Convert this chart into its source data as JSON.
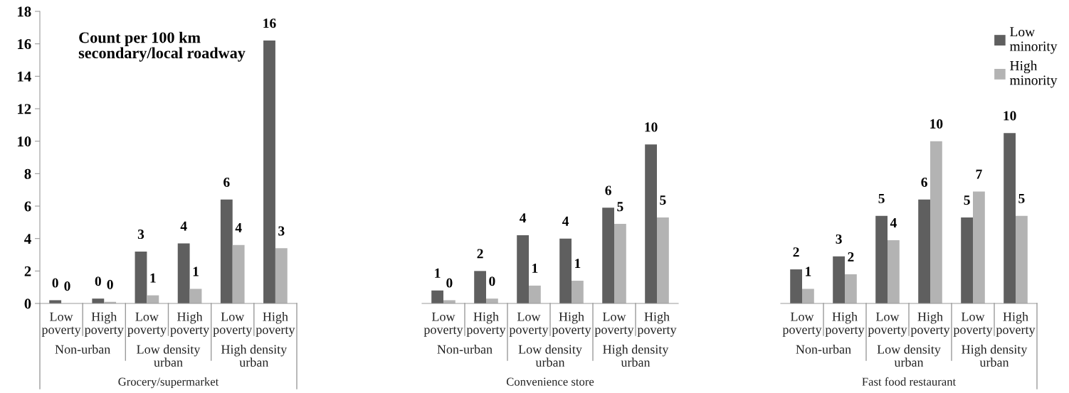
{
  "chart_data": [
    {
      "type": "bar",
      "ylabel": "Count per 100 km secondary/local roadway",
      "xlabel": "Grocery/supermarket",
      "categories": [
        "Low poverty",
        "High poverty",
        "Low poverty",
        "High poverty",
        "Low poverty",
        "High poverty"
      ],
      "annotations": [
        "Non-urban",
        "Low density urban",
        "High density urban"
      ],
      "series": [
        {
          "color": "#5f5f5f",
          "values": [
            0.2,
            0.3,
            3.2,
            3.7,
            6.4,
            16.2
          ],
          "value_labels": [
            "0",
            "0",
            "3",
            "4",
            "6",
            "16"
          ]
        },
        {
          "color": "#b3b3b3",
          "values": [
            0.0,
            0.1,
            0.5,
            0.9,
            3.6,
            3.4
          ],
          "value_labels": [
            "0",
            "0",
            "1",
            "1",
            "4",
            "3"
          ]
        }
      ],
      "ylim": [
        0,
        18
      ],
      "yticks": [
        0,
        2,
        4,
        6,
        8,
        10,
        12,
        14,
        16,
        18
      ],
      "grid": false,
      "legend": false
    },
    {
      "type": "bar",
      "xlabel": "Convenience store",
      "categories": [
        "Low poverty",
        "High poverty",
        "Low poverty",
        "High poverty",
        "Low poverty",
        "High poverty"
      ],
      "annotations": [
        "Non-urban",
        "Low density urban",
        "High density urban"
      ],
      "series": [
        {
          "color": "#5f5f5f",
          "values": [
            0.8,
            2.0,
            4.2,
            4.0,
            5.9,
            9.8
          ],
          "value_labels": [
            "1",
            "2",
            "4",
            "4",
            "6",
            "10"
          ]
        },
        {
          "color": "#b3b3b3",
          "values": [
            0.2,
            0.3,
            1.1,
            1.4,
            4.9,
            5.3
          ],
          "value_labels": [
            "0",
            "0",
            "1",
            "1",
            "5",
            "5"
          ]
        }
      ],
      "ylim": [
        0,
        18
      ],
      "tick_labels": "x",
      "grid": false,
      "legend": false
    },
    {
      "type": "bar",
      "xlabel": "Fast food restaurant",
      "categories": [
        "Low poverty",
        "High poverty",
        "Low poverty",
        "High poverty",
        "Low poverty",
        "High poverty"
      ],
      "annotations": [
        "Non-urban",
        "Low density urban",
        "High density urban"
      ],
      "series": [
        {
          "name": "Low minority",
          "color": "#5f5f5f",
          "values": [
            2.1,
            2.9,
            5.4,
            6.4,
            5.3,
            10.5
          ],
          "value_labels": [
            "2",
            "3",
            "5",
            "6",
            "5",
            "10"
          ]
        },
        {
          "name": "High minority",
          "color": "#b3b3b3",
          "values": [
            0.9,
            1.8,
            3.9,
            10.0,
            6.9,
            5.4
          ],
          "value_labels": [
            "1",
            "2",
            "4",
            "10",
            "7",
            "5"
          ]
        }
      ],
      "ylim": [
        0,
        18
      ],
      "tick_labels": "x",
      "grid": false,
      "legend": "top right"
    }
  ]
}
